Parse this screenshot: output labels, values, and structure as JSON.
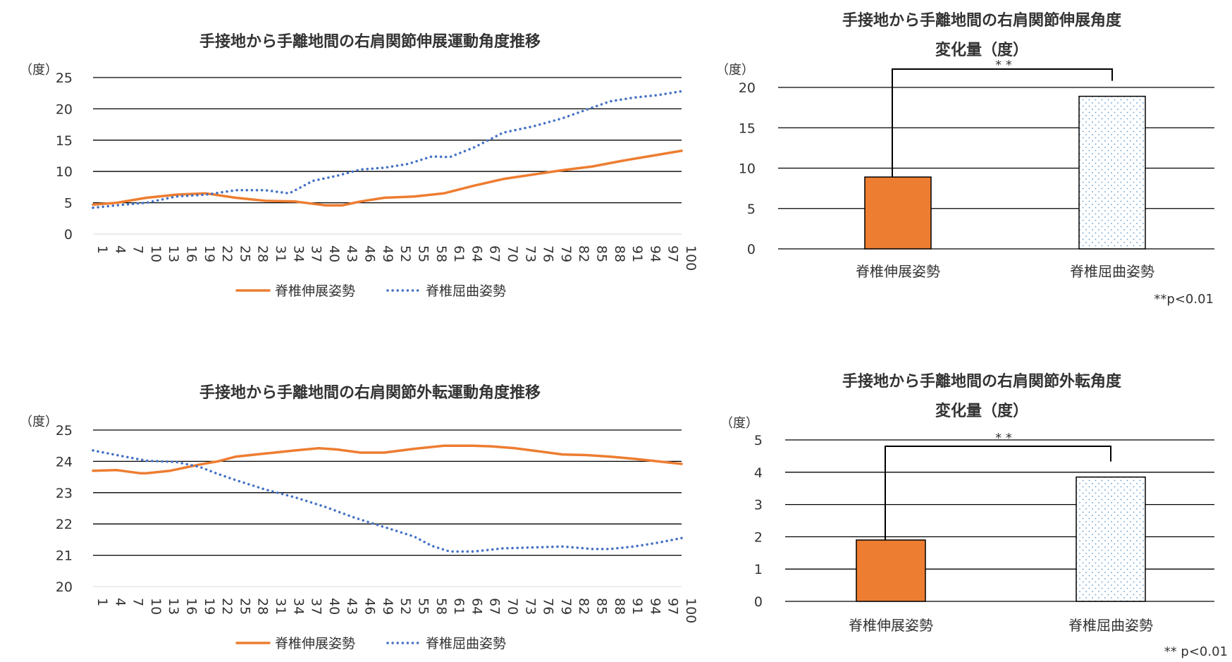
{
  "colors": {
    "orange": "#ED7D31",
    "blue": "#4472C4",
    "grid": "#000000",
    "dots": "#5B9BD5"
  },
  "chart_data": [
    {
      "type": "line",
      "title": "手接地から手離地間の右肩関節伸展運動角度推移",
      "unit_label": "（度）",
      "ylim": [
        0,
        25
      ],
      "yticks": [
        0,
        5,
        10,
        15,
        20,
        25
      ],
      "xlim": [
        1,
        100
      ],
      "xtick_labels": [
        "1",
        "4",
        "7",
        "10",
        "13",
        "16",
        "19",
        "22",
        "25",
        "28",
        "31",
        "34",
        "37",
        "40",
        "43",
        "46",
        "49",
        "52",
        "55",
        "58",
        "61",
        "64",
        "67",
        "70",
        "73",
        "76",
        "79",
        "82",
        "85",
        "88",
        "91",
        "94",
        "97",
        "100"
      ],
      "grid": true,
      "legend_position": "bottom",
      "series": [
        {
          "name": "脊椎伸展姿勢",
          "style": "solid",
          "x": [
            1,
            5,
            10,
            15,
            20,
            25,
            30,
            35,
            40,
            43,
            46,
            50,
            55,
            60,
            65,
            70,
            75,
            80,
            85,
            90,
            95,
            100
          ],
          "y": [
            4.7,
            5.0,
            5.8,
            6.3,
            6.5,
            5.8,
            5.3,
            5.2,
            4.6,
            4.6,
            5.2,
            5.8,
            6.0,
            6.5,
            7.7,
            8.8,
            9.5,
            10.2,
            10.8,
            11.7,
            12.5,
            13.3
          ]
        },
        {
          "name": "脊椎屈曲姿勢",
          "style": "dotted",
          "x": [
            1,
            5,
            10,
            15,
            20,
            25,
            30,
            34,
            38,
            42,
            46,
            50,
            54,
            58,
            61,
            65,
            70,
            75,
            80,
            85,
            88,
            92,
            96,
            100
          ],
          "y": [
            4.2,
            4.6,
            5.0,
            6.0,
            6.3,
            7.0,
            7.0,
            6.5,
            8.5,
            9.3,
            10.3,
            10.6,
            11.2,
            12.4,
            12.3,
            13.8,
            16.2,
            17.2,
            18.5,
            20.2,
            21.2,
            21.8,
            22.2,
            22.8
          ]
        }
      ]
    },
    {
      "type": "bar",
      "title": [
        "手接地から手離地間の右肩関節伸展角度",
        "変化量（度）"
      ],
      "unit_label": "（度）",
      "ylim": [
        0,
        20
      ],
      "yticks": [
        0,
        5,
        10,
        15,
        20
      ],
      "categories": [
        "脊椎伸展姿勢",
        "脊椎屈曲姿勢"
      ],
      "values": [
        8.9,
        18.9
      ],
      "grid": true,
      "significance": "* *",
      "footnote": "**p<0.01"
    },
    {
      "type": "line",
      "title": "手接地から手離地間の右肩関節外転運動角度推移",
      "unit_label": "（度）",
      "ylim": [
        20,
        25
      ],
      "yticks": [
        20,
        21,
        22,
        23,
        24,
        25
      ],
      "xlim": [
        1,
        100
      ],
      "xtick_labels": [
        "1",
        "4",
        "7",
        "10",
        "13",
        "16",
        "19",
        "22",
        "25",
        "28",
        "31",
        "34",
        "37",
        "40",
        "43",
        "46",
        "49",
        "52",
        "55",
        "58",
        "61",
        "64",
        "67",
        "70",
        "73",
        "76",
        "79",
        "82",
        "85",
        "88",
        "91",
        "94",
        "97",
        "100"
      ],
      "grid": true,
      "legend_position": "bottom",
      "series": [
        {
          "name": "脊椎伸展姿勢",
          "style": "solid",
          "x": [
            1,
            5,
            9,
            10,
            14,
            19,
            22,
            25,
            30,
            35,
            39,
            42,
            46,
            50,
            55,
            60,
            65,
            68,
            72,
            76,
            80,
            84,
            88,
            92,
            96,
            100
          ],
          "y": [
            23.7,
            23.72,
            23.62,
            23.62,
            23.7,
            23.9,
            24.0,
            24.15,
            24.25,
            24.35,
            24.42,
            24.38,
            24.28,
            24.28,
            24.4,
            24.5,
            24.5,
            24.48,
            24.42,
            24.32,
            24.22,
            24.2,
            24.15,
            24.08,
            24.0,
            23.92
          ]
        },
        {
          "name": "脊椎屈曲姿勢",
          "style": "dotted",
          "x": [
            1,
            5,
            10,
            15,
            19,
            22,
            25,
            30,
            35,
            40,
            45,
            50,
            55,
            58,
            61,
            65,
            70,
            75,
            80,
            85,
            88,
            92,
            96,
            100
          ],
          "y": [
            24.35,
            24.2,
            24.02,
            23.98,
            23.82,
            23.6,
            23.4,
            23.1,
            22.85,
            22.55,
            22.2,
            21.9,
            21.6,
            21.3,
            21.12,
            21.12,
            21.22,
            21.25,
            21.28,
            21.2,
            21.2,
            21.28,
            21.4,
            21.55
          ]
        }
      ]
    },
    {
      "type": "bar",
      "title": [
        "手接地から手離地間の右肩関節外転角度",
        "変化量（度）"
      ],
      "unit_label": "（度）",
      "ylim": [
        0,
        5
      ],
      "yticks": [
        0,
        1,
        2,
        3,
        4,
        5
      ],
      "categories": [
        "脊椎伸展姿勢",
        "脊椎屈曲姿勢"
      ],
      "values": [
        1.9,
        3.85
      ],
      "grid": true,
      "significance": "* *",
      "footnote": "** p<0.01"
    }
  ]
}
